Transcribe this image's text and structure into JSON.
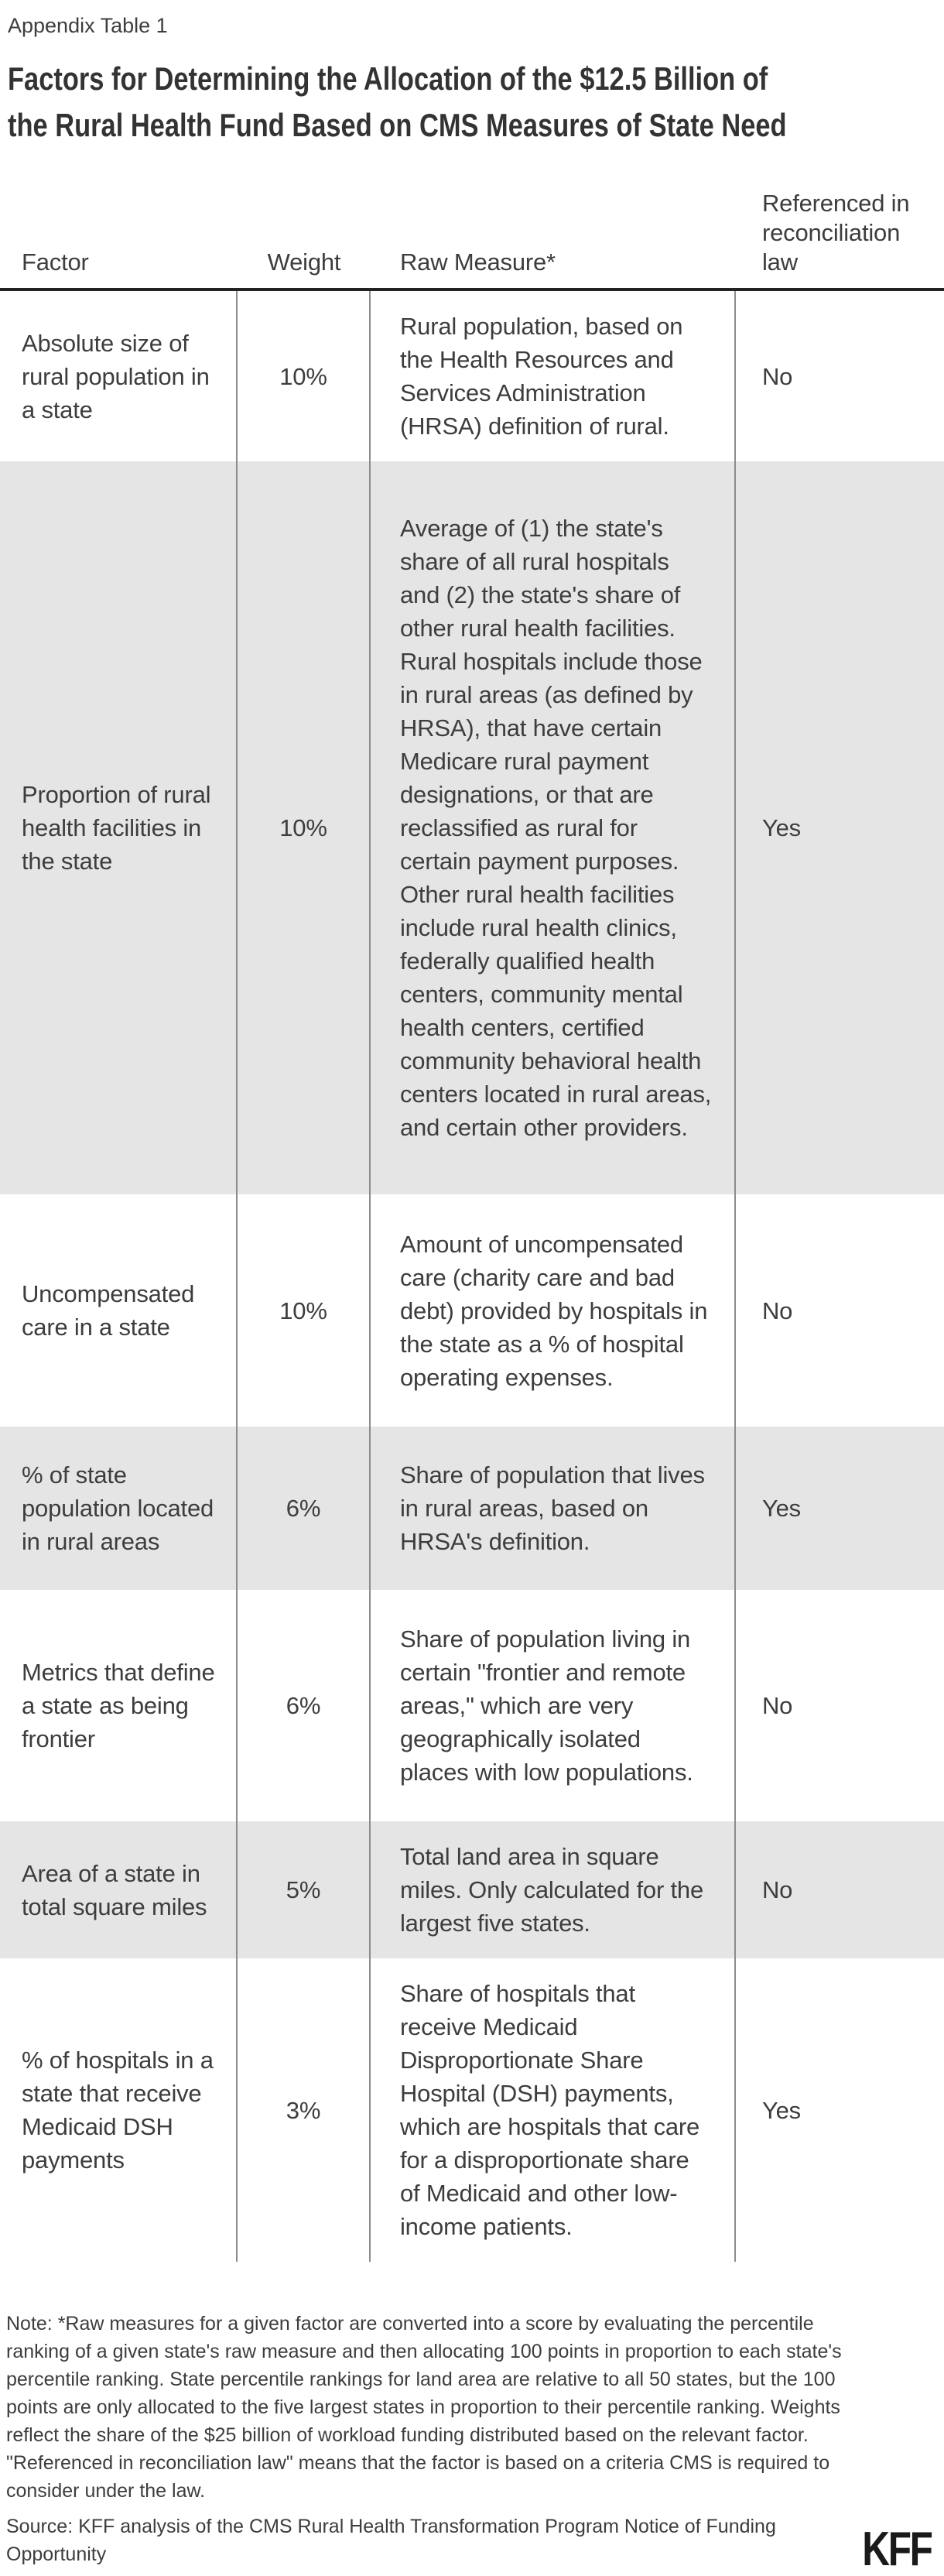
{
  "page": {
    "eyebrow": "Appendix Table 1",
    "title_line1": "Factors for Determining the Allocation of the $12.5 Billion of",
    "title_line2": "the Rural Health Fund Based on CMS Measures of State Need"
  },
  "table": {
    "columns": [
      "Factor",
      "Weight",
      "Raw Measure*",
      "Referenced in reconciliation law"
    ],
    "rows": [
      {
        "factor": "Absolute size of rural population in a state",
        "weight": "10%",
        "raw_measure": "Rural population, based on the Health Resources and Services Administration (HRSA) definition of rural.",
        "referenced": "No"
      },
      {
        "factor": "Proportion of rural health facilities in the state",
        "weight": "10%",
        "raw_measure": "Average of (1) the state's share of all rural hospitals and (2) the state's share of other rural health facilities. Rural hospitals include those in rural areas (as defined by HRSA), that have certain Medicare rural payment designations, or that are reclassified as rural for certain payment purposes. Other rural health facilities include rural health clinics, federally qualified health centers, community mental health centers, certified community behavioral health centers located in rural areas, and certain other providers.",
        "referenced": "Yes"
      },
      {
        "factor": "Uncompensated care in a state",
        "weight": "10%",
        "raw_measure": "Amount of uncompensated care (charity care and bad debt) provided by hospitals in the state as a % of hospital operating expenses.",
        "referenced": "No"
      },
      {
        "factor": "% of state population located in rural areas",
        "weight": "6%",
        "raw_measure": "Share of population that lives in rural areas, based on HRSA's definition.",
        "referenced": "Yes"
      },
      {
        "factor": "Metrics that define a state as being frontier",
        "weight": "6%",
        "raw_measure": "Share of population living in certain \"frontier and remote areas,\" which are very geographically isolated places with low populations.",
        "referenced": "No"
      },
      {
        "factor": "Area of a state in total square miles",
        "weight": "5%",
        "raw_measure": "Total land area in square miles. Only calculated for the largest five states.",
        "referenced": "No"
      },
      {
        "factor": "% of hospitals in a state that receive Medicaid DSH payments",
        "weight": "3%",
        "raw_measure": "Share of hospitals that receive Medicaid Disproportionate Share Hospital (DSH) payments, which are hospitals that care for a disproportionate share of Medicaid and other low-income patients.",
        "referenced": "Yes"
      }
    ]
  },
  "footer": {
    "note": "Note: *Raw measures for a given factor are converted into a score by evaluating the percentile ranking of a given state's raw measure and then allocating 100 points in proportion to each state's percentile ranking. State percentile rankings for land area are relative to all 50 states, but the 100 points are only allocated to the five largest states in proportion to their percentile ranking. Weights reflect the share of the $25 billion of workload funding distributed based on the relevant factor. \"Referenced in reconciliation law\" means that the factor is based on a criteria CMS is required to consider under the law.",
    "source": "Source: KFF analysis of the CMS Rural Health Transformation Program Notice of Funding Opportunity",
    "logo": "KFF"
  },
  "colors": {
    "alt_row_bg": "#e5e5e5",
    "header_rule": "#222222",
    "column_rule": "#8c8c8c",
    "text": "#3d3d3d",
    "logo": "#1a1a1a"
  }
}
